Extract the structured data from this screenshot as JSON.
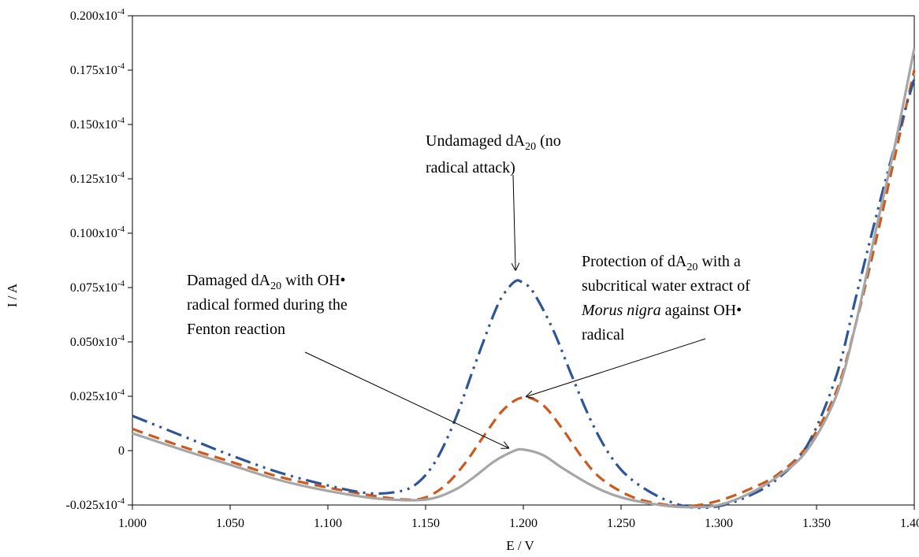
{
  "chart_data": {
    "type": "line",
    "xlabel": "E / V",
    "ylabel": "I / A",
    "xlim": [
      1.0,
      1.4
    ],
    "ylim": [
      -0.025,
      0.2
    ],
    "y_unit_suffix": "x10",
    "y_unit_exp": "-4",
    "x_ticks": [
      {
        "value": 1.0,
        "label": "1.000"
      },
      {
        "value": 1.05,
        "label": "1.050"
      },
      {
        "value": 1.1,
        "label": "1.100"
      },
      {
        "value": 1.15,
        "label": "1.150"
      },
      {
        "value": 1.2,
        "label": "1.200"
      },
      {
        "value": 1.25,
        "label": "1.250"
      },
      {
        "value": 1.3,
        "label": "1.300"
      },
      {
        "value": 1.35,
        "label": "1.350"
      },
      {
        "value": 1.4,
        "label": "1.400"
      }
    ],
    "y_ticks": [
      {
        "value": -0.025,
        "label": "-0.025"
      },
      {
        "value": 0,
        "label": "0"
      },
      {
        "value": 0.025,
        "label": "0.025"
      },
      {
        "value": 0.05,
        "label": "0.050"
      },
      {
        "value": 0.075,
        "label": "0.075"
      },
      {
        "value": 0.1,
        "label": "0.100"
      },
      {
        "value": 0.125,
        "label": "0.125"
      },
      {
        "value": 0.15,
        "label": "0.150"
      },
      {
        "value": 0.175,
        "label": "0.175"
      },
      {
        "value": 0.2,
        "label": "0.200"
      }
    ],
    "grid": false,
    "legend": "none",
    "series": [
      {
        "id": "undamaged",
        "color": "#2e5597",
        "style": "dash-dot-dot",
        "x": [
          1.0,
          1.025,
          1.05,
          1.075,
          1.1,
          1.12,
          1.135,
          1.145,
          1.155,
          1.165,
          1.175,
          1.185,
          1.19,
          1.196,
          1.2,
          1.205,
          1.215,
          1.225,
          1.235,
          1.245,
          1.255,
          1.27,
          1.285,
          1.3,
          1.315,
          1.33,
          1.345,
          1.36,
          1.37,
          1.38,
          1.39,
          1.4
        ],
        "y": [
          0.016,
          0.007,
          -0.002,
          -0.01,
          -0.016,
          -0.0195,
          -0.019,
          -0.0155,
          -0.005,
          0.014,
          0.039,
          0.063,
          0.072,
          0.078,
          0.077,
          0.073,
          0.056,
          0.034,
          0.013,
          -0.003,
          -0.013,
          -0.0215,
          -0.026,
          -0.0255,
          -0.021,
          -0.013,
          0.002,
          0.034,
          0.07,
          0.106,
          0.14,
          0.171
        ]
      },
      {
        "id": "protected",
        "color": "#cc5a1e",
        "style": "dash",
        "x": [
          1.0,
          1.025,
          1.05,
          1.075,
          1.1,
          1.125,
          1.14,
          1.15,
          1.16,
          1.17,
          1.18,
          1.19,
          1.2,
          1.21,
          1.22,
          1.23,
          1.24,
          1.255,
          1.27,
          1.285,
          1.3,
          1.315,
          1.33,
          1.345,
          1.36,
          1.37,
          1.38,
          1.39,
          1.4
        ],
        "y": [
          0.01,
          0.002,
          -0.005,
          -0.012,
          -0.017,
          -0.021,
          -0.0225,
          -0.0215,
          -0.016,
          -0.006,
          0.007,
          0.019,
          0.0245,
          0.021,
          0.01,
          -0.003,
          -0.013,
          -0.021,
          -0.0245,
          -0.0255,
          -0.023,
          -0.018,
          -0.011,
          0.002,
          0.027,
          0.058,
          0.095,
          0.135,
          0.175
        ]
      },
      {
        "id": "damaged",
        "color": "#a6a6a6",
        "style": "solid",
        "x": [
          1.0,
          1.025,
          1.05,
          1.075,
          1.1,
          1.125,
          1.15,
          1.165,
          1.175,
          1.185,
          1.195,
          1.2,
          1.21,
          1.22,
          1.235,
          1.25,
          1.27,
          1.285,
          1.3,
          1.315,
          1.33,
          1.345,
          1.36,
          1.37,
          1.38,
          1.39,
          1.4
        ],
        "y": [
          0.008,
          0.0005,
          -0.0065,
          -0.0135,
          -0.0185,
          -0.022,
          -0.0225,
          -0.018,
          -0.012,
          -0.005,
          -0.0002,
          0.0005,
          -0.002,
          -0.008,
          -0.016,
          -0.0215,
          -0.025,
          -0.026,
          -0.025,
          -0.02,
          -0.012,
          0.0,
          0.025,
          0.058,
          0.1,
          0.14,
          0.185
        ]
      }
    ],
    "annotations": [
      {
        "id": "undamaged-note",
        "lines": [
          [
            {
              "t": "Undamaged dA"
            },
            {
              "t": "20",
              "sub": true
            },
            {
              "t": " (no"
            }
          ],
          [
            {
              "t": "radical attack)"
            }
          ]
        ],
        "arrow_to": [
          1.196,
          0.078
        ]
      },
      {
        "id": "protected-note",
        "lines": [
          [
            {
              "t": "Protection of dA"
            },
            {
              "t": "20",
              "sub": true
            },
            {
              "t": " with a"
            }
          ],
          [
            {
              "t": "subcritical water extract of"
            }
          ],
          [
            {
              "t": "Morus nigra",
              "italic": true
            },
            {
              "t": " against OH•"
            }
          ],
          [
            {
              "t": "radical"
            }
          ]
        ],
        "arrow_to": [
          1.2,
          0.0245
        ]
      },
      {
        "id": "damaged-note",
        "lines": [
          [
            {
              "t": "Damaged dA"
            },
            {
              "t": "20",
              "sub": true
            },
            {
              "t": " with OH•"
            }
          ],
          [
            {
              "t": "radical formed during the"
            }
          ],
          [
            {
              "t": "Fenton reaction"
            }
          ]
        ],
        "arrow_to": [
          1.194,
          0.0005
        ]
      }
    ]
  }
}
